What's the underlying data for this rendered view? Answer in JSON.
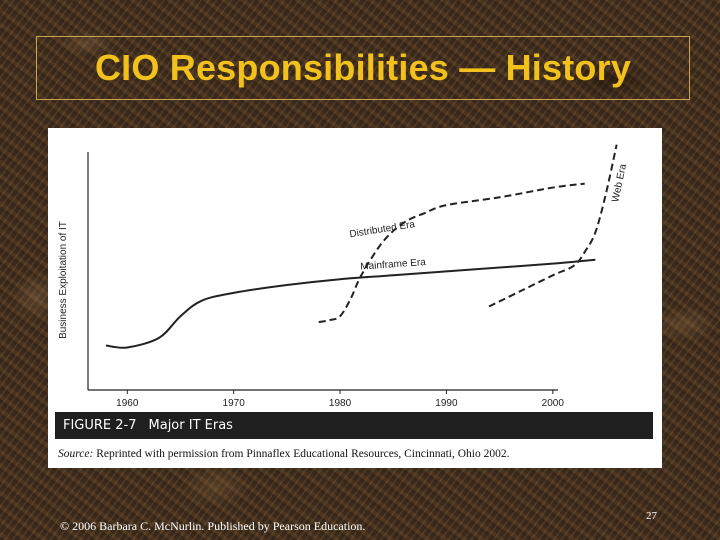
{
  "slide": {
    "title": "CIO Responsibilities — History",
    "footer": "© 2006 Barbara C. McNurlin. Published by Pearson Education.",
    "page_number": "27"
  },
  "figure": {
    "caption_number": "FIGURE 2-7",
    "caption_title": "Major IT Eras",
    "source_label": "Source:",
    "source_text": "Reprinted with permission from Pinnaflex Educational Resources, Cincinnati, Ohio 2002."
  },
  "colors": {
    "title": "#f2c11c",
    "background": "#4a3420",
    "caption_bar": "#1f1f1f"
  },
  "chart_data": {
    "type": "line",
    "title": "",
    "xlabel": "",
    "ylabel": "Business Exploitation of IT",
    "xlim": [
      1958,
      2005
    ],
    "ylim": [
      0,
      100
    ],
    "x_ticks": [
      1960,
      1970,
      1980,
      1990,
      2000
    ],
    "y_ticks": [],
    "grid": false,
    "series": [
      {
        "name": "Mainframe Era",
        "style": "solid",
        "points": [
          [
            1958,
            10
          ],
          [
            1960,
            9
          ],
          [
            1963,
            14
          ],
          [
            1965,
            25
          ],
          [
            1967,
            33
          ],
          [
            1970,
            37
          ],
          [
            1975,
            41
          ],
          [
            1980,
            44
          ],
          [
            1985,
            46
          ],
          [
            1990,
            48
          ],
          [
            1995,
            50
          ],
          [
            2000,
            52
          ],
          [
            2004,
            54
          ]
        ]
      },
      {
        "name": "Distributed Era",
        "style": "dashed",
        "points": [
          [
            1978,
            22
          ],
          [
            1979,
            23
          ],
          [
            1980,
            25
          ],
          [
            1981,
            34
          ],
          [
            1982,
            46
          ],
          [
            1984,
            63
          ],
          [
            1986,
            73
          ],
          [
            1988,
            78
          ],
          [
            1990,
            82
          ],
          [
            1995,
            86
          ],
          [
            2000,
            91
          ],
          [
            2003,
            93
          ]
        ]
      },
      {
        "name": "Web Era",
        "style": "dashed",
        "points": [
          [
            1994,
            30
          ],
          [
            1997,
            38
          ],
          [
            2000,
            46
          ],
          [
            2002,
            51
          ],
          [
            2003,
            58
          ],
          [
            2004,
            68
          ],
          [
            2005,
            88
          ],
          [
            2006,
            113
          ]
        ]
      }
    ]
  }
}
